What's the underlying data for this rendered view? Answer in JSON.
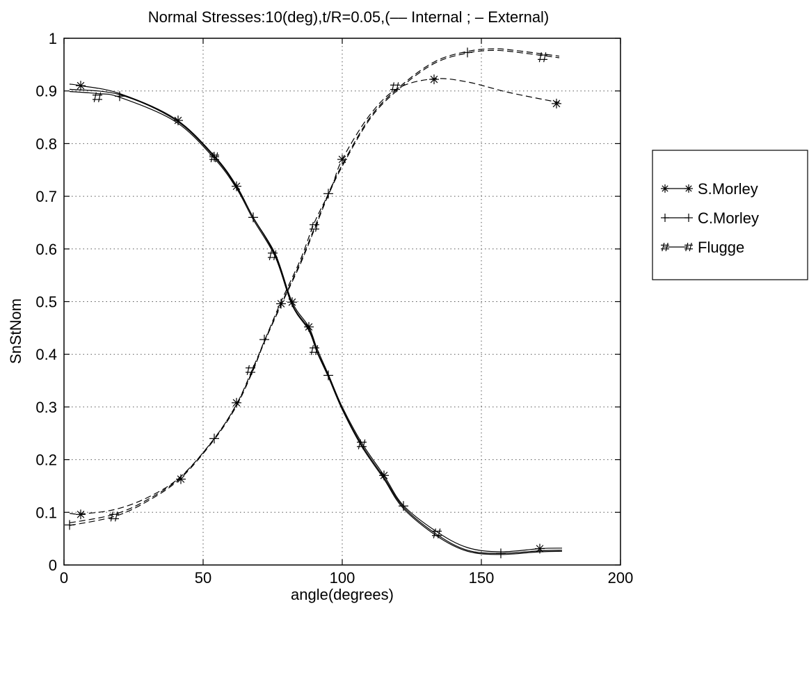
{
  "chart_data": {
    "type": "line",
    "title": "Normal Stresses:10(deg),t/R=0.05,(–– Internal ; – External)",
    "xlabel": "angle(degrees)",
    "ylabel": "SnStNom",
    "xlim": [
      0,
      200
    ],
    "ylim": [
      0,
      1
    ],
    "xticks": [
      0,
      50,
      100,
      150,
      200
    ],
    "xtick_labels": [
      "0",
      "50",
      "100",
      "150",
      "200"
    ],
    "yticks": [
      0,
      0.1,
      0.2,
      0.3,
      0.4,
      0.5,
      0.6,
      0.7,
      0.8,
      0.9,
      1
    ],
    "ytick_labels": [
      "0",
      "0.1",
      "0.2",
      "0.3",
      "0.4",
      "0.5",
      "0.6",
      "0.7",
      "0.8",
      "0.9",
      "1"
    ],
    "grid": true,
    "legend_position": "outside-right",
    "legend": [
      {
        "label": "S.Morley",
        "marker": "*"
      },
      {
        "label": "C.Morley",
        "marker": "+"
      },
      {
        "label": "Flugge",
        "marker": "#"
      }
    ],
    "series": [
      {
        "model": "S.Morley",
        "surface": "External",
        "line_style": "solid",
        "marker": "*",
        "x": [
          2,
          6,
          20,
          40,
          54,
          62,
          68,
          76,
          82,
          88,
          91,
          95,
          100,
          107,
          115,
          122,
          134,
          145,
          157,
          171,
          179
        ],
        "y": [
          0.913,
          0.91,
          0.895,
          0.847,
          0.777,
          0.72,
          0.66,
          0.59,
          0.499,
          0.452,
          0.41,
          0.362,
          0.3,
          0.232,
          0.17,
          0.113,
          0.063,
          0.033,
          0.025,
          0.031,
          0.032
        ],
        "markers_x": [
          6,
          41,
          62,
          82,
          88,
          115,
          171
        ],
        "markers_y": [
          0.91,
          0.844,
          0.719,
          0.499,
          0.452,
          0.17,
          0.031
        ]
      },
      {
        "model": "C.Morley",
        "surface": "External",
        "line_style": "solid",
        "marker": "+",
        "x": [
          2,
          20,
          40,
          54,
          62,
          68,
          76,
          82,
          88,
          91,
          95,
          100,
          107,
          115,
          122,
          134,
          145,
          157,
          171,
          179
        ],
        "y": [
          0.903,
          0.893,
          0.845,
          0.775,
          0.718,
          0.66,
          0.587,
          0.495,
          0.448,
          0.405,
          0.36,
          0.297,
          0.228,
          0.166,
          0.11,
          0.058,
          0.028,
          0.022,
          0.027,
          0.028
        ],
        "markers_x": [
          20,
          54,
          68,
          95,
          122,
          157
        ],
        "markers_y": [
          0.89,
          0.775,
          0.66,
          0.36,
          0.112,
          0.022
        ]
      },
      {
        "model": "Flugge",
        "surface": "External",
        "line_style": "solid",
        "marker": "#",
        "x": [
          2,
          12,
          20,
          40,
          54,
          62,
          68,
          76,
          82,
          88,
          91,
          95,
          100,
          107,
          115,
          122,
          134,
          145,
          157,
          171,
          179
        ],
        "y": [
          0.899,
          0.895,
          0.888,
          0.842,
          0.772,
          0.715,
          0.656,
          0.584,
          0.493,
          0.445,
          0.403,
          0.357,
          0.295,
          0.225,
          0.163,
          0.107,
          0.055,
          0.026,
          0.02,
          0.025,
          0.026
        ],
        "markers_x": [
          12,
          54,
          75,
          90,
          107,
          134
        ],
        "markers_y": [
          0.888,
          0.774,
          0.588,
          0.408,
          0.229,
          0.06
        ]
      },
      {
        "model": "S.Morley",
        "surface": "Internal",
        "line_style": "dashed",
        "marker": "*",
        "x": [
          2,
          6,
          18,
          30,
          42,
          54,
          62,
          68,
          72,
          78,
          85,
          90,
          96,
          100,
          110,
          120,
          133,
          145,
          160,
          178
        ],
        "y": [
          0.098,
          0.097,
          0.105,
          0.128,
          0.168,
          0.24,
          0.305,
          0.375,
          0.425,
          0.5,
          0.58,
          0.65,
          0.715,
          0.77,
          0.855,
          0.905,
          0.923,
          0.917,
          0.897,
          0.878
        ],
        "markers_x": [
          6,
          42,
          62,
          78,
          100,
          133,
          177
        ],
        "markers_y": [
          0.096,
          0.163,
          0.308,
          0.496,
          0.77,
          0.922,
          0.876
        ]
      },
      {
        "model": "C.Morley",
        "surface": "Internal",
        "line_style": "dashed",
        "marker": "+",
        "x": [
          2,
          18,
          30,
          42,
          54,
          62,
          68,
          72,
          78,
          85,
          90,
          95,
          100,
          110,
          120,
          133,
          145,
          155,
          165,
          178
        ],
        "y": [
          0.08,
          0.096,
          0.124,
          0.167,
          0.24,
          0.305,
          0.372,
          0.425,
          0.495,
          0.575,
          0.64,
          0.705,
          0.76,
          0.85,
          0.905,
          0.955,
          0.975,
          0.98,
          0.975,
          0.966
        ],
        "markers_x": [
          2,
          54,
          72,
          95,
          145
        ],
        "markers_y": [
          0.076,
          0.24,
          0.428,
          0.705,
          0.973
        ]
      },
      {
        "model": "Flugge",
        "surface": "Internal",
        "line_style": "dashed",
        "marker": "#",
        "x": [
          2,
          18,
          30,
          42,
          54,
          62,
          68,
          72,
          78,
          85,
          90,
          95,
          100,
          110,
          120,
          133,
          145,
          155,
          165,
          178
        ],
        "y": [
          0.075,
          0.092,
          0.121,
          0.165,
          0.238,
          0.302,
          0.37,
          0.423,
          0.493,
          0.572,
          0.637,
          0.702,
          0.757,
          0.847,
          0.902,
          0.952,
          0.972,
          0.977,
          0.972,
          0.963
        ],
        "markers_x": [
          18,
          67,
          90,
          119,
          172
        ],
        "markers_y": [
          0.092,
          0.37,
          0.642,
          0.907,
          0.964
        ]
      }
    ]
  }
}
